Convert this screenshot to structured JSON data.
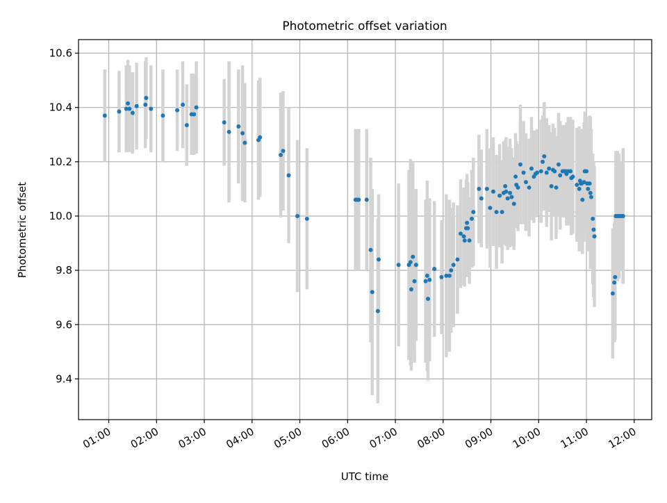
{
  "chart_data": {
    "type": "scatter",
    "title": "Photometric offset variation",
    "xlabel": "UTC time",
    "ylabel": "Photometric offset",
    "xlim": [
      "00:22",
      "12:22"
    ],
    "ylim": [
      9.25,
      10.65
    ],
    "x_ticks": [
      "01:00",
      "02:00",
      "03:00",
      "04:00",
      "05:00",
      "06:00",
      "07:00",
      "08:00",
      "09:00",
      "10:00",
      "11:00",
      "12:00"
    ],
    "y_ticks": [
      "9.4",
      "9.6",
      "9.8",
      "10.0",
      "10.2",
      "10.4",
      "10.6"
    ],
    "grid": true,
    "marker_color": "#1f77b4",
    "errorbar_color": "#d3d3d3",
    "series": [
      {
        "x": [
          "00:55",
          "01:13",
          "01:22",
          "01:24",
          "01:26",
          "01:30",
          "01:35",
          "01:46",
          "01:47",
          "01:53",
          "02:08",
          "02:26",
          "02:33",
          "02:38",
          "02:44",
          "02:47",
          "02:50",
          "03:25",
          "03:31",
          "03:43",
          "03:48",
          "03:51",
          "04:08",
          "04:10",
          "04:36",
          "04:39",
          "04:46",
          "04:57",
          "05:09",
          "06:10",
          "06:12",
          "06:14",
          "06:24",
          "06:29",
          "06:31",
          "06:38",
          "06:39",
          "07:04",
          "07:17",
          "07:19",
          "07:20",
          "07:22",
          "07:24",
          "07:26",
          "07:38",
          "07:40",
          "07:41",
          "07:43",
          "07:49",
          "07:58",
          "08:04",
          "08:08",
          "08:10",
          "08:13",
          "08:18",
          "08:22",
          "08:26",
          "08:27",
          "08:29",
          "08:30",
          "08:31",
          "08:33",
          "08:36",
          "08:38",
          "08:45",
          "08:48",
          "08:55",
          "08:59",
          "09:03",
          "09:07",
          "09:11",
          "09:14",
          "09:16",
          "09:18",
          "09:19",
          "09:21",
          "09:24",
          "09:26",
          "09:29",
          "09:31",
          "09:32",
          "09:34",
          "09:37",
          "09:41",
          "09:44",
          "09:48",
          "09:51",
          "09:54",
          "09:56",
          "09:58",
          "10:03",
          "10:05",
          "10:07",
          "10:10",
          "10:13",
          "10:16",
          "10:18",
          "10:20",
          "10:22",
          "10:25",
          "10:27",
          "10:30",
          "10:32",
          "10:34",
          "10:35",
          "10:37",
          "10:40",
          "10:41",
          "10:43",
          "10:48",
          "10:51",
          "10:52",
          "10:53",
          "10:54",
          "10:55",
          "10:57",
          "10:58",
          "11:00",
          "11:01",
          "11:02",
          "11:04",
          "11:05",
          "11:06",
          "11:08",
          "11:09",
          "11:10",
          "11:33",
          "11:35",
          "11:36",
          "11:37",
          "11:39",
          "11:41",
          "11:43",
          "11:44",
          "11:46"
        ],
        "y": [
          10.37,
          10.385,
          10.395,
          10.415,
          10.395,
          10.38,
          10.405,
          10.41,
          10.435,
          10.395,
          10.37,
          10.39,
          10.41,
          10.335,
          10.375,
          10.375,
          10.4,
          10.345,
          10.31,
          10.33,
          10.305,
          10.27,
          10.28,
          10.29,
          10.225,
          10.24,
          10.15,
          10.0,
          9.99,
          10.06,
          10.06,
          10.06,
          10.06,
          9.875,
          9.72,
          9.65,
          9.84,
          9.82,
          9.82,
          9.83,
          9.73,
          9.85,
          9.76,
          9.82,
          9.76,
          9.78,
          9.695,
          9.765,
          9.805,
          9.775,
          9.78,
          9.78,
          9.8,
          9.82,
          9.84,
          9.935,
          9.925,
          9.91,
          9.955,
          9.975,
          9.955,
          9.91,
          9.99,
          10.015,
          10.1,
          10.065,
          10.1,
          10.03,
          10.09,
          10.015,
          10.075,
          10.015,
          10.085,
          10.11,
          10.09,
          10.065,
          10.085,
          10.07,
          10.045,
          10.145,
          10.115,
          10.105,
          10.19,
          10.16,
          10.125,
          10.105,
          10.175,
          10.145,
          10.155,
          10.16,
          10.165,
          10.2,
          10.22,
          10.16,
          10.175,
          10.11,
          10.17,
          10.165,
          10.105,
          10.19,
          10.15,
          10.165,
          10.165,
          10.165,
          10.155,
          10.165,
          10.165,
          10.14,
          10.145,
          10.115,
          10.1,
          10.13,
          10.12,
          10.12,
          10.06,
          10.125,
          10.165,
          10.165,
          10.12,
          10.1,
          10.12,
          10.085,
          10.07,
          9.99,
          9.95,
          9.925,
          9.715,
          9.755,
          9.775,
          10.0,
          10.0,
          10.0,
          10.0,
          10.0,
          10.0
        ],
        "yerr": [
          0.17,
          0.15,
          0.16,
          0.16,
          0.16,
          0.15,
          0.16,
          0.16,
          0.15,
          0.16,
          0.17,
          0.15,
          0.16,
          0.15,
          0.15,
          0.15,
          0.17,
          0.16,
          0.26,
          0.21,
          0.25,
          0.22,
          0.22,
          0.22,
          0.23,
          0.22,
          0.25,
          0.28,
          0.26,
          0.26,
          0.26,
          0.26,
          0.26,
          0.34,
          0.38,
          0.34,
          0.24,
          0.3,
          0.35,
          0.38,
          0.3,
          0.35,
          0.3,
          0.28,
          0.3,
          0.35,
          0.3,
          0.3,
          0.25,
          0.21,
          0.3,
          0.28,
          0.23,
          0.23,
          0.2,
          0.2,
          0.18,
          0.17,
          0.18,
          0.18,
          0.17,
          0.16,
          0.18,
          0.2,
          0.2,
          0.18,
          0.22,
          0.22,
          0.2,
          0.21,
          0.19,
          0.19,
          0.19,
          0.17,
          0.2,
          0.19,
          0.2,
          0.18,
          0.17,
          0.16,
          0.16,
          0.16,
          0.22,
          0.19,
          0.18,
          0.18,
          0.19,
          0.17,
          0.16,
          0.16,
          0.19,
          0.17,
          0.2,
          0.2,
          0.16,
          0.2,
          0.17,
          0.16,
          0.19,
          0.19,
          0.2,
          0.17,
          0.17,
          0.17,
          0.19,
          0.2,
          0.2,
          0.21,
          0.21,
          0.21,
          0.23,
          0.17,
          0.2,
          0.2,
          0.2,
          0.22,
          0.22,
          0.2,
          0.2,
          0.23,
          0.25,
          0.28,
          0.25,
          0.24,
          0.25,
          0.26,
          0.24,
          0.22,
          0.23,
          0.24,
          0.24,
          0.23,
          0.2,
          0.19,
          0.25
        ]
      }
    ]
  }
}
